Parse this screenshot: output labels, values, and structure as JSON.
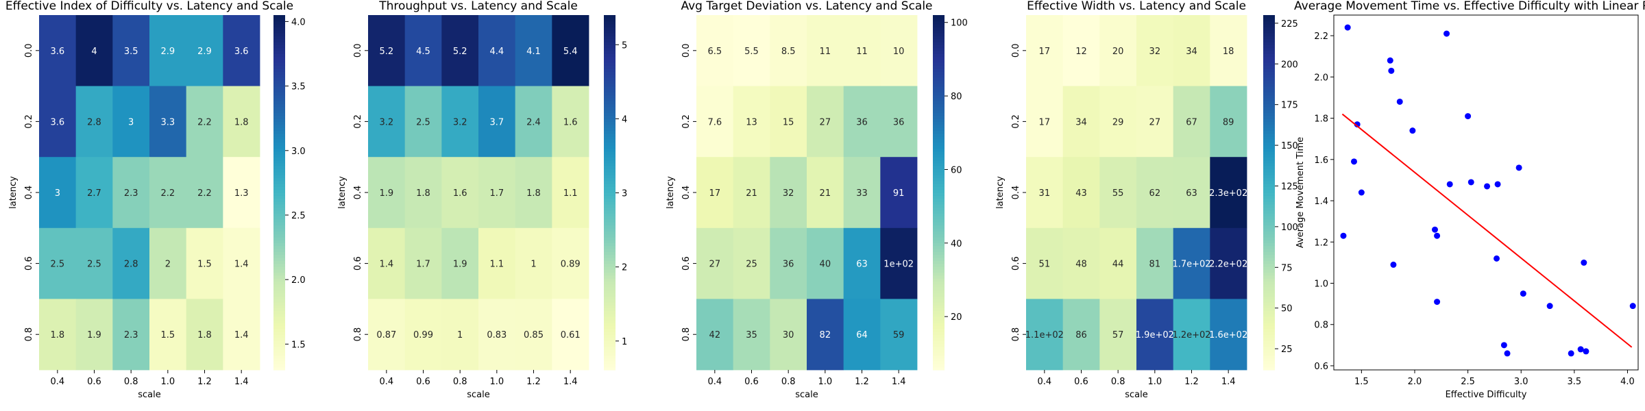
{
  "chart_data": [
    {
      "type": "heatmap",
      "title": "Effective Index of Difficulty vs. Latency and Scale",
      "xlabel": "scale",
      "ylabel": "latency",
      "x_categories": [
        "0.4",
        "0.6",
        "0.8",
        "1.0",
        "1.2",
        "1.4"
      ],
      "y_categories": [
        "0.0",
        "0.2",
        "0.4",
        "0.6",
        "0.8"
      ],
      "values": [
        [
          3.6,
          4.0,
          3.5,
          2.9,
          2.9,
          3.6
        ],
        [
          3.6,
          2.8,
          3.0,
          3.3,
          2.2,
          1.8
        ],
        [
          3.0,
          2.7,
          2.3,
          2.2,
          2.2,
          1.3
        ],
        [
          2.5,
          2.5,
          2.8,
          2.0,
          1.5,
          1.4
        ],
        [
          1.8,
          1.9,
          2.3,
          1.5,
          1.8,
          1.4
        ]
      ],
      "annotations": [
        [
          "3.6",
          "4",
          "3.5",
          "2.9",
          "2.9",
          "3.6"
        ],
        [
          "3.6",
          "2.8",
          "3",
          "3.3",
          "2.2",
          "1.8"
        ],
        [
          "3",
          "2.7",
          "2.3",
          "2.2",
          "2.2",
          "1.3"
        ],
        [
          "2.5",
          "2.5",
          "2.8",
          "2",
          "1.5",
          "1.4"
        ],
        [
          "1.8",
          "1.9",
          "2.3",
          "1.5",
          "1.8",
          "1.4"
        ]
      ],
      "vmin": 1.3,
      "vmax": 4.05,
      "colorbar_ticks": [
        1.5,
        2.0,
        2.5,
        3.0,
        3.5,
        4.0
      ],
      "colorbar_tick_labels": [
        "1.5",
        "2.0",
        "2.5",
        "3.0",
        "3.5",
        "4.0"
      ],
      "colormap": "YlGnBu"
    },
    {
      "type": "heatmap",
      "title": "Throughput vs. Latency and Scale",
      "xlabel": "scale",
      "ylabel": "latency",
      "x_categories": [
        "0.4",
        "0.6",
        "0.8",
        "1.0",
        "1.2",
        "1.4"
      ],
      "y_categories": [
        "0.0",
        "0.2",
        "0.4",
        "0.6",
        "0.8"
      ],
      "values": [
        [
          5.2,
          4.5,
          5.2,
          4.4,
          4.1,
          5.4
        ],
        [
          3.2,
          2.5,
          3.2,
          3.7,
          2.4,
          1.6
        ],
        [
          1.9,
          1.8,
          1.6,
          1.7,
          1.8,
          1.1
        ],
        [
          1.4,
          1.7,
          1.9,
          1.1,
          1.0,
          0.89
        ],
        [
          0.87,
          0.99,
          1.0,
          0.83,
          0.85,
          0.61
        ]
      ],
      "annotations": [
        [
          "5.2",
          "4.5",
          "5.2",
          "4.4",
          "4.1",
          "5.4"
        ],
        [
          "3.2",
          "2.5",
          "3.2",
          "3.7",
          "2.4",
          "1.6"
        ],
        [
          "1.9",
          "1.8",
          "1.6",
          "1.7",
          "1.8",
          "1.1"
        ],
        [
          "1.4",
          "1.7",
          "1.9",
          "1.1",
          "1",
          "0.89"
        ],
        [
          "0.87",
          "0.99",
          "1",
          "0.83",
          "0.85",
          "0.61"
        ]
      ],
      "vmin": 0.61,
      "vmax": 5.4,
      "colorbar_ticks": [
        1,
        2,
        3,
        4,
        5
      ],
      "colorbar_tick_labels": [
        "1",
        "2",
        "3",
        "4",
        "5"
      ],
      "colormap": "YlGnBu"
    },
    {
      "type": "heatmap",
      "title": "Avg Target Deviation vs. Latency and Scale",
      "xlabel": "scale",
      "ylabel": "latency",
      "x_categories": [
        "0.4",
        "0.6",
        "0.8",
        "1.0",
        "1.2",
        "1.4"
      ],
      "y_categories": [
        "0.0",
        "0.2",
        "0.4",
        "0.6",
        "0.8"
      ],
      "values": [
        [
          6.5,
          5.5,
          8.5,
          11,
          11,
          10
        ],
        [
          7.6,
          13,
          15,
          27,
          36,
          36
        ],
        [
          17,
          21,
          32,
          21,
          33,
          91
        ],
        [
          27,
          25,
          36,
          40,
          63,
          100
        ],
        [
          42,
          35,
          30,
          82,
          64,
          59
        ]
      ],
      "annotations": [
        [
          "6.5",
          "5.5",
          "8.5",
          "11",
          "11",
          "10"
        ],
        [
          "7.6",
          "13",
          "15",
          "27",
          "36",
          "36"
        ],
        [
          "17",
          "21",
          "32",
          "21",
          "33",
          "91"
        ],
        [
          "27",
          "25",
          "36",
          "40",
          "63",
          "1e+02"
        ],
        [
          "42",
          "35",
          "30",
          "82",
          "64",
          "59"
        ]
      ],
      "vmin": 5.5,
      "vmax": 102,
      "colorbar_ticks": [
        20,
        40,
        60,
        80,
        100
      ],
      "colorbar_tick_labels": [
        "20",
        "40",
        "60",
        "80",
        "100"
      ],
      "colormap": "YlGnBu"
    },
    {
      "type": "heatmap",
      "title": "Effective Width vs. Latency and Scale",
      "xlabel": "scale",
      "ylabel": "latency",
      "x_categories": [
        "0.4",
        "0.6",
        "0.8",
        "1.0",
        "1.2",
        "1.4"
      ],
      "y_categories": [
        "0.0",
        "0.2",
        "0.4",
        "0.6",
        "0.8"
      ],
      "values": [
        [
          17,
          12,
          20,
          32,
          34,
          18
        ],
        [
          17,
          34,
          29,
          27,
          67,
          89
        ],
        [
          31,
          43,
          55,
          62,
          63,
          230
        ],
        [
          51,
          48,
          44,
          81,
          170,
          220
        ],
        [
          110,
          86,
          57,
          190,
          120,
          160
        ]
      ],
      "annotations": [
        [
          "17",
          "12",
          "20",
          "32",
          "34",
          "18"
        ],
        [
          "17",
          "34",
          "29",
          "27",
          "67",
          "89"
        ],
        [
          "31",
          "43",
          "55",
          "62",
          "63",
          "2.3e+02"
        ],
        [
          "51",
          "48",
          "44",
          "81",
          "1.7e+02",
          "2.2e+02"
        ],
        [
          "1.1e+02",
          "86",
          "57",
          "1.9e+02",
          "1.2e+02",
          "1.6e+02"
        ]
      ],
      "vmin": 12,
      "vmax": 230,
      "colorbar_ticks": [
        25,
        50,
        75,
        100,
        125,
        150,
        175,
        200,
        225
      ],
      "colorbar_tick_labels": [
        "25",
        "50",
        "75",
        "100",
        "125",
        "150",
        "175",
        "200",
        "225"
      ],
      "colormap": "YlGnBu"
    },
    {
      "type": "scatter",
      "title": "Average Movement Time vs. Effective Difficulty with Linear Re",
      "xlabel": "Effective Difficulty",
      "ylabel": "Average Movement Time",
      "xlim": [
        1.24,
        4.1
      ],
      "ylim": [
        0.58,
        2.3
      ],
      "x_ticks": [
        1.5,
        2.0,
        2.5,
        3.0,
        3.5,
        4.0
      ],
      "x_tick_labels": [
        "1.5",
        "2.0",
        "2.5",
        "3.0",
        "3.5",
        "4.0"
      ],
      "y_ticks": [
        0.6,
        0.8,
        1.0,
        1.2,
        1.4,
        1.6,
        1.8,
        2.0,
        2.2
      ],
      "y_tick_labels": [
        "0.6",
        "0.8",
        "1.0",
        "1.2",
        "1.4",
        "1.6",
        "1.8",
        "2.0",
        "2.2"
      ],
      "point_color": "#0000ff",
      "line_color": "#ff0000",
      "points": [
        {
          "x": 1.33,
          "y": 1.23
        },
        {
          "x": 1.37,
          "y": 2.24
        },
        {
          "x": 1.43,
          "y": 1.59
        },
        {
          "x": 1.46,
          "y": 1.77
        },
        {
          "x": 1.5,
          "y": 1.44
        },
        {
          "x": 1.77,
          "y": 2.08
        },
        {
          "x": 1.78,
          "y": 2.03
        },
        {
          "x": 1.8,
          "y": 1.09
        },
        {
          "x": 1.86,
          "y": 1.88
        },
        {
          "x": 1.98,
          "y": 1.74
        },
        {
          "x": 2.19,
          "y": 1.26
        },
        {
          "x": 2.21,
          "y": 0.91
        },
        {
          "x": 2.21,
          "y": 1.23
        },
        {
          "x": 2.3,
          "y": 2.21
        },
        {
          "x": 2.33,
          "y": 1.48
        },
        {
          "x": 2.5,
          "y": 1.81
        },
        {
          "x": 2.53,
          "y": 1.49
        },
        {
          "x": 2.68,
          "y": 1.47
        },
        {
          "x": 2.77,
          "y": 1.12
        },
        {
          "x": 2.78,
          "y": 1.48
        },
        {
          "x": 2.84,
          "y": 0.7
        },
        {
          "x": 2.87,
          "y": 0.66
        },
        {
          "x": 2.98,
          "y": 1.56
        },
        {
          "x": 3.02,
          "y": 0.95
        },
        {
          "x": 3.27,
          "y": 0.89
        },
        {
          "x": 3.47,
          "y": 0.66
        },
        {
          "x": 3.56,
          "y": 0.68
        },
        {
          "x": 3.59,
          "y": 1.1
        },
        {
          "x": 3.61,
          "y": 0.67
        },
        {
          "x": 4.05,
          "y": 0.89
        }
      ],
      "regression": {
        "x": [
          1.32,
          4.04
        ],
        "y": [
          1.82,
          0.69
        ]
      }
    }
  ]
}
